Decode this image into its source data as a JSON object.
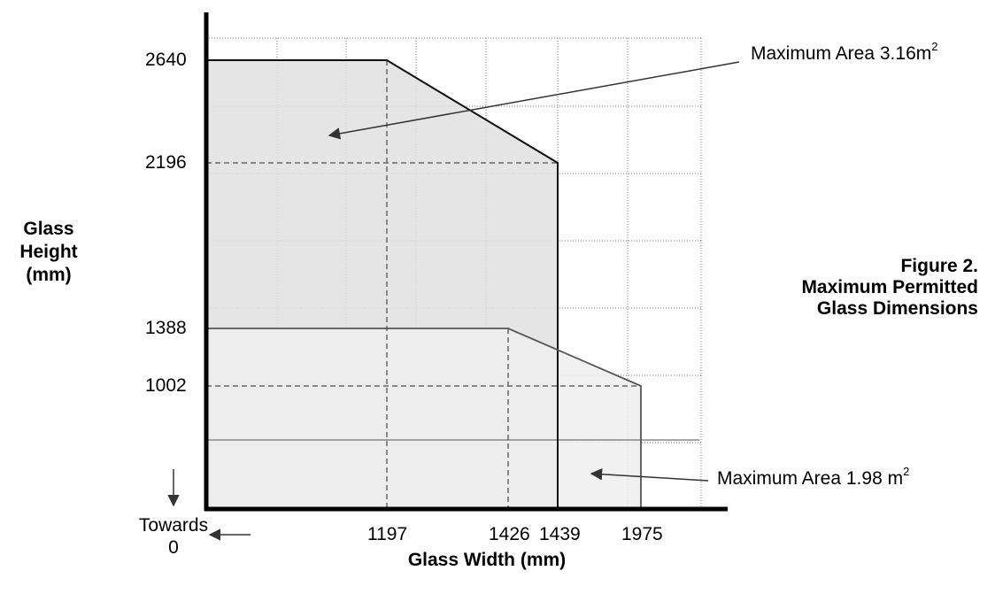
{
  "chart_data": {
    "type": "area",
    "title": "Figure 2.\nMaximum Permitted\nGlass Dimensions",
    "xlabel": "Glass Width (mm)",
    "ylabel": "Glass\nHeight\n(mm)",
    "x_ticks": [
      {
        "value": 1197,
        "label": "1197"
      },
      {
        "value": 1426,
        "label": "1426"
      },
      {
        "value": 1439,
        "label": "1439"
      },
      {
        "value": 1975,
        "label": "1975"
      }
    ],
    "y_ticks": [
      {
        "value": 2640,
        "label": "2640"
      },
      {
        "value": 2196,
        "label": "2196"
      },
      {
        "value": 1388,
        "label": "1388"
      },
      {
        "value": 1002,
        "label": "1002"
      }
    ],
    "origin_note": "Towards\n0",
    "grid": true,
    "series": [
      {
        "annotation_prefix": "Maximum Area 3.16m",
        "annotation_superscript": "2",
        "fill": "#e1e1e1",
        "outline": [
          [
            0,
            2640
          ],
          [
            1197,
            2640
          ],
          [
            1439,
            2196
          ],
          [
            1439,
            0
          ]
        ],
        "guides": [
          [
            1197,
            2640
          ],
          [
            0,
            2196
          ]
        ]
      },
      {
        "annotation_prefix": "Maximum Area 1.98 m",
        "annotation_superscript": "2",
        "fill": "#efefef",
        "outline": [
          [
            0,
            1388
          ],
          [
            1426,
            1388
          ],
          [
            1975,
            1002
          ],
          [
            1975,
            0
          ]
        ],
        "guides": [
          [
            1426,
            1388
          ],
          [
            0,
            1002
          ]
        ]
      }
    ]
  }
}
